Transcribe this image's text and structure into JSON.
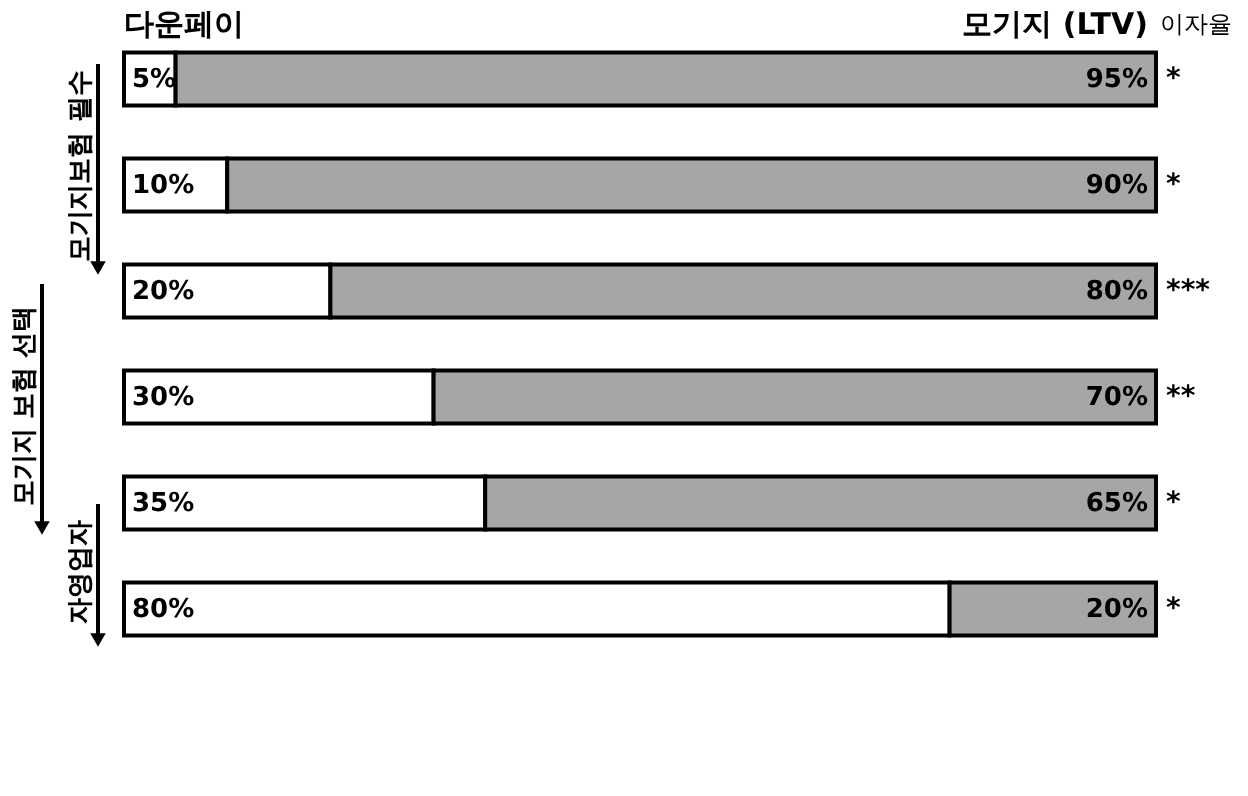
{
  "chart_data": {
    "type": "bar",
    "orientation": "horizontal",
    "stacked": true,
    "legend": "top",
    "categories": [
      null,
      null,
      null,
      null,
      null,
      null
    ],
    "series": [
      {
        "name": "다운페이",
        "color": "#ffffff",
        "values": [
          5,
          10,
          20,
          30,
          35,
          80
        ],
        "value_labels": [
          "5%",
          "10%",
          "20%",
          "30%",
          "35%",
          "80%"
        ]
      },
      {
        "name": "모기지 (LTV)",
        "color": "#a6a6a6",
        "values": [
          95,
          90,
          80,
          70,
          65,
          20
        ],
        "value_labels": [
          "95%",
          "90%",
          "80%",
          "70%",
          "65%",
          "20%"
        ]
      }
    ],
    "annotations": [
      "이자율",
      "*",
      "*",
      "***",
      "**",
      "*",
      "*",
      "모기지보험 필수",
      "모기지 보험 선택",
      "자영업자"
    ]
  }
}
